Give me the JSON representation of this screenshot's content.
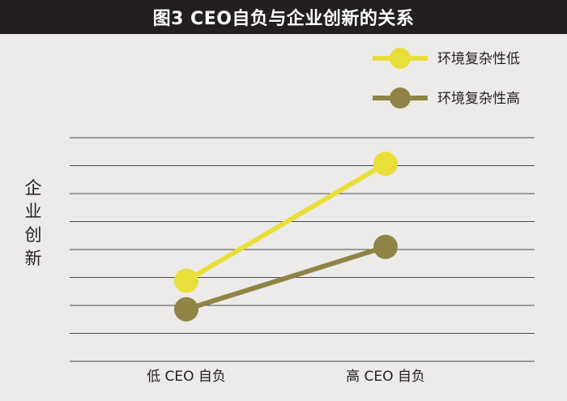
{
  "chart_data": {
    "type": "line",
    "title": "图3  CEO自负与企业创新的关系",
    "xlabel": "",
    "ylabel": "企业创新",
    "categories": [
      "低 CEO 自负",
      "高 CEO 自负"
    ],
    "series": [
      {
        "name": "环境复杂性低",
        "values": [
          2.8,
          7.3
        ],
        "color": "#e8df3a"
      },
      {
        "name": "环境复杂性高",
        "values": [
          1.7,
          4.1
        ],
        "color": "#8f8445"
      }
    ],
    "ylim": [
      -0.3,
      8.3
    ],
    "grid": true,
    "legend": "top-right",
    "y_ticks_labeled": false
  }
}
